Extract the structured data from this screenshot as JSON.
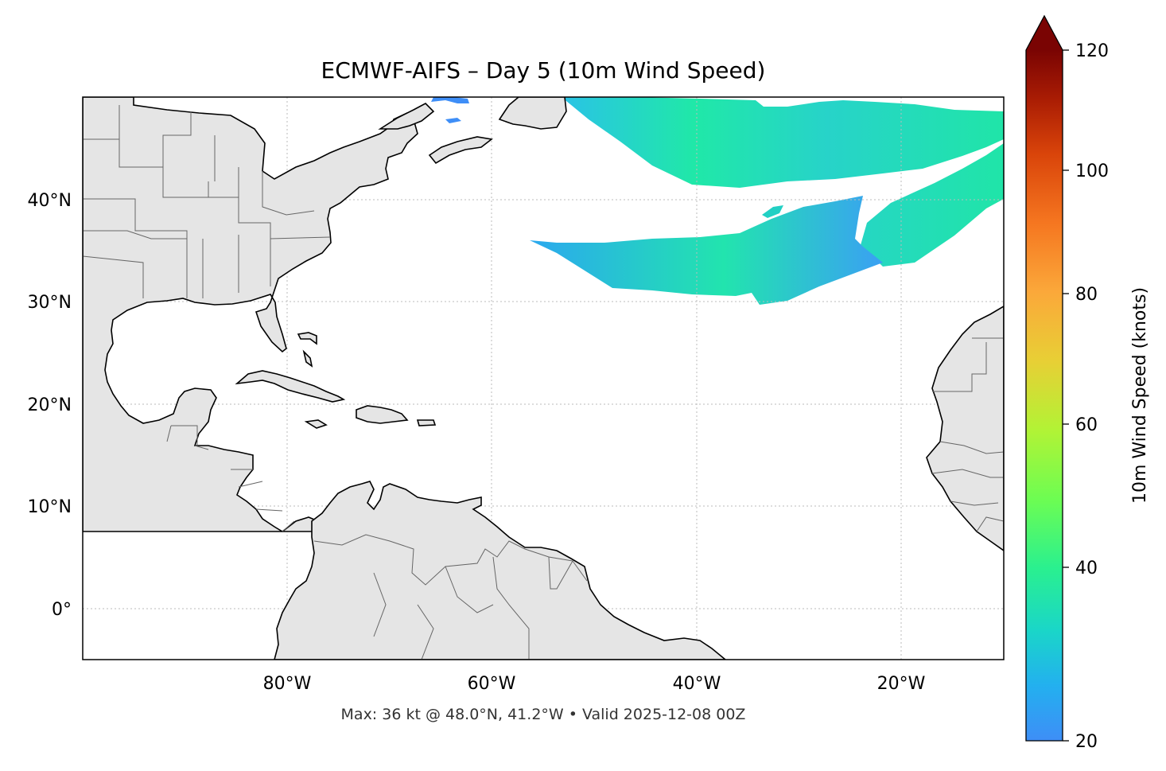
{
  "title": "ECMWF-AIFS – Day 5 (10m Wind Speed)",
  "footer": "Max: 36 kt @ 48.0°N, 41.2°W • Valid 2025-12-08 00Z",
  "map": {
    "extent": {
      "lon_min": -100,
      "lon_max": -10,
      "lat_min": -5,
      "lat_max": 50
    },
    "lat_ticks": [
      "40°N",
      "30°N",
      "20°N",
      "10°N",
      "0°"
    ],
    "lon_ticks": [
      "80°W",
      "60°W",
      "40°W",
      "20°W"
    ],
    "land_color": "#e5e5e5",
    "ocean_color": "#ffffff",
    "gridlines": true
  },
  "colorbar": {
    "label": "10m Wind Speed (knots)",
    "min": 20,
    "max": 120,
    "ticks": [
      "20",
      "40",
      "60",
      "80",
      "100",
      "120"
    ],
    "extend": "max",
    "colormap": "turbo"
  },
  "wind_fields": [
    {
      "region": "north-band",
      "speed_range_kt": [
        25,
        36
      ],
      "max_kt": 36
    },
    {
      "region": "central-band",
      "speed_range_kt": [
        24,
        34
      ]
    }
  ],
  "max_point": {
    "lat": 48.0,
    "lon": -41.2,
    "speed_kt": 36
  }
}
